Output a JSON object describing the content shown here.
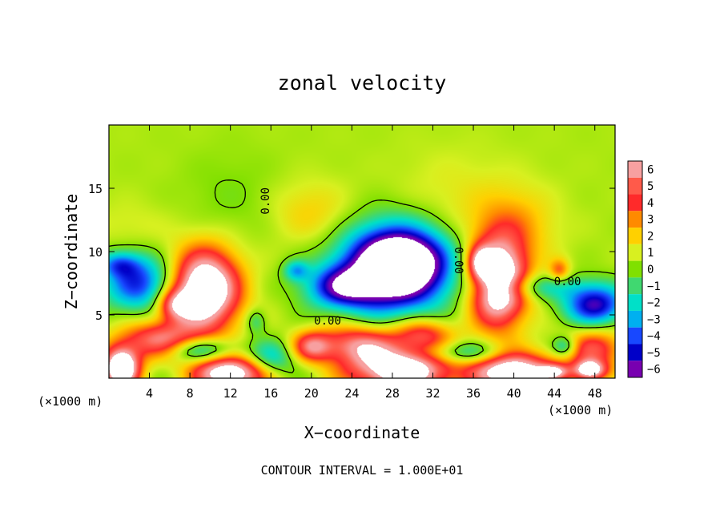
{
  "chart_data": {
    "type": "heatmap",
    "title": "zonal velocity",
    "xlabel": "X−coordinate",
    "ylabel": "Z−coordinate",
    "x_unit_left": "(×1000 m)",
    "x_unit_right": "(×1000 m)",
    "footer": "CONTOUR INTERVAL = 1.000E+01",
    "xlim": [
      0,
      50
    ],
    "ylim": [
      0,
      20
    ],
    "x_ticks": [
      4,
      8,
      12,
      16,
      20,
      24,
      28,
      32,
      36,
      40,
      44,
      48
    ],
    "y_ticks": [
      5,
      10,
      15
    ],
    "colorbar": {
      "levels": [
        6,
        5,
        4,
        3,
        2,
        1,
        0,
        -1,
        -2,
        -3,
        -4,
        -5,
        -6
      ],
      "labels": [
        "6",
        "5",
        "4",
        "3",
        "2",
        "1",
        "0",
        "−1",
        "−2",
        "−3",
        "−4",
        "−5",
        "−6"
      ],
      "colors": [
        "#f7a0a0",
        "#ff5a4a",
        "#ff2a2a",
        "#ff8a00",
        "#ffd000",
        "#d8f020",
        "#80e000",
        "#40d870",
        "#00e0c8",
        "#00b0f0",
        "#1848ff",
        "#0000c8",
        "#7800b0"
      ]
    },
    "contour_labels": [
      {
        "text": "0.00",
        "x": 15.5,
        "y": 14,
        "rotate": -90
      },
      {
        "text": "0.00",
        "x": 34.5,
        "y": 9.3,
        "rotate": 90
      },
      {
        "text": "0.00",
        "x": 45.3,
        "y": 7.6,
        "rotate": 0
      },
      {
        "text": "0.00",
        "x": 21.6,
        "y": 4.5,
        "rotate": 0
      }
    ],
    "field": {
      "background": 0.5,
      "blobs": [
        {
          "x": 20,
          "y": 13,
          "rx": 4,
          "ry": 2.5,
          "v": 1.5
        },
        {
          "x": 40,
          "y": 12,
          "rx": 4,
          "ry": 3,
          "v": 2.0
        },
        {
          "x": 12,
          "y": 14,
          "rx": 5,
          "ry": 4,
          "v": -0.6
        },
        {
          "x": 34,
          "y": 14,
          "rx": 6,
          "ry": 4,
          "v": 0.8
        },
        {
          "x": 2,
          "y": 12,
          "rx": 4,
          "ry": 2,
          "v": 0.6
        },
        {
          "x": 28,
          "y": 8.5,
          "rx": 5.5,
          "ry": 3.6,
          "v": -7
        },
        {
          "x": 29,
          "y": 9.2,
          "rx": 4.2,
          "ry": 2.4,
          "v": -6
        },
        {
          "x": 23,
          "y": 7.2,
          "rx": 3.5,
          "ry": 1.6,
          "v": -5
        },
        {
          "x": 3,
          "y": 7.5,
          "rx": 3.5,
          "ry": 2.2,
          "v": -5
        },
        {
          "x": 1,
          "y": 9,
          "rx": 2,
          "ry": 1,
          "v": -3
        },
        {
          "x": 9.5,
          "y": 7,
          "rx": 3.4,
          "ry": 3.2,
          "v": 9
        },
        {
          "x": 6.5,
          "y": 5.8,
          "rx": 1.8,
          "ry": 1.2,
          "v": 4
        },
        {
          "x": 38.5,
          "y": 7.5,
          "rx": 2.8,
          "ry": 3.4,
          "v": 9
        },
        {
          "x": 36.7,
          "y": 9.2,
          "rx": 1.2,
          "ry": 1.2,
          "v": 4
        },
        {
          "x": 44.5,
          "y": 8.5,
          "rx": 1,
          "ry": 0.9,
          "v": 3
        },
        {
          "x": 41.5,
          "y": 7.2,
          "rx": 5,
          "ry": 1.0,
          "v": -2.5
        },
        {
          "x": 48,
          "y": 5.8,
          "rx": 3,
          "ry": 1.6,
          "v": -6
        },
        {
          "x": 18.5,
          "y": 8.5,
          "rx": 1.2,
          "ry": 0.8,
          "v": -3
        },
        {
          "x": 14.5,
          "y": 4.5,
          "rx": 1,
          "ry": 1,
          "v": -2
        },
        {
          "x": 5,
          "y": 3,
          "rx": 4,
          "ry": 1.5,
          "v": 5
        },
        {
          "x": 24.5,
          "y": 2.7,
          "rx": 4,
          "ry": 1.6,
          "v": 5
        },
        {
          "x": 20,
          "y": 2.5,
          "rx": 2,
          "ry": 1.2,
          "v": 4
        },
        {
          "x": 31,
          "y": 3.5,
          "rx": 3,
          "ry": 1.3,
          "v": 4
        },
        {
          "x": 48,
          "y": 2.3,
          "rx": 3,
          "ry": 1.6,
          "v": 4
        },
        {
          "x": 44,
          "y": 0.5,
          "rx": 1.5,
          "ry": 0.6,
          "v": 4
        },
        {
          "x": 12,
          "y": 0.4,
          "rx": 3.5,
          "ry": 1.4,
          "v": 8
        },
        {
          "x": 29,
          "y": 0.6,
          "rx": 5,
          "ry": 1.8,
          "v": 8
        },
        {
          "x": 40,
          "y": 0.5,
          "rx": 4,
          "ry": 1.5,
          "v": 8
        },
        {
          "x": 1.2,
          "y": 0.8,
          "rx": 1.8,
          "ry": 1.6,
          "v": 9
        },
        {
          "x": 47.5,
          "y": 0.6,
          "rx": 1.6,
          "ry": 0.8,
          "v": 7
        },
        {
          "x": 9,
          "y": 2.2,
          "rx": 3.5,
          "ry": 1.0,
          "v": -4
        },
        {
          "x": 16,
          "y": 1.5,
          "rx": 2.5,
          "ry": 1.4,
          "v": -3
        },
        {
          "x": 35,
          "y": 2.0,
          "rx": 4,
          "ry": 0.9,
          "v": -3
        },
        {
          "x": 45,
          "y": 2.5,
          "rx": 1.2,
          "ry": 0.8,
          "v": -3
        }
      ]
    }
  }
}
